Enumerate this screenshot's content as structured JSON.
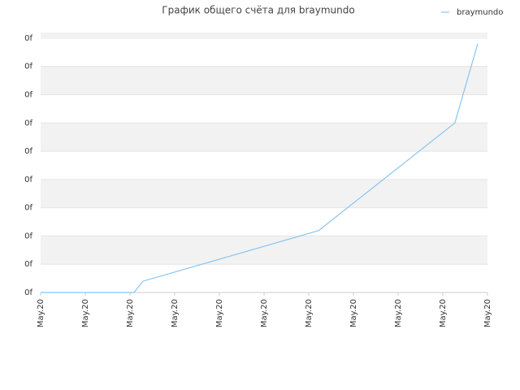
{
  "chart_data": {
    "type": "line",
    "title": "График общего счёта для braymundo",
    "x": [
      0,
      2.09,
      2.29,
      6.22,
      9.27,
      9.78
    ],
    "series": [
      {
        "name": "braymundo",
        "color": "#88c4f0",
        "values": [
          0,
          0,
          0.4,
          2.19,
          6.0,
          8.8
        ]
      }
    ],
    "xlim": [
      0,
      10
    ],
    "xticks": [
      {
        "value": 0,
        "label": "May.20"
      },
      {
        "value": 1,
        "label": "May.20"
      },
      {
        "value": 2,
        "label": "May.20"
      },
      {
        "value": 3,
        "label": "May.20"
      },
      {
        "value": 4,
        "label": "May.20"
      },
      {
        "value": 5,
        "label": "May.20"
      },
      {
        "value": 6,
        "label": "May.20"
      },
      {
        "value": 7,
        "label": "May.20"
      },
      {
        "value": 8,
        "label": "May.20"
      },
      {
        "value": 9,
        "label": "May.20"
      },
      {
        "value": 10,
        "label": "May.20"
      }
    ],
    "ylim": [
      0,
      9.2
    ],
    "yticks": [
      {
        "value": 0,
        "label": "0f"
      },
      {
        "value": 1,
        "label": "0f"
      },
      {
        "value": 2,
        "label": "0f"
      },
      {
        "value": 3,
        "label": "0f"
      },
      {
        "value": 4,
        "label": "0f"
      },
      {
        "value": 5,
        "label": "0f"
      },
      {
        "value": 6,
        "label": "0f"
      },
      {
        "value": 7,
        "label": "0f"
      },
      {
        "value": 8,
        "label": "0f"
      },
      {
        "value": 9,
        "label": "0f"
      }
    ],
    "grid": true,
    "legend": "top-right"
  }
}
